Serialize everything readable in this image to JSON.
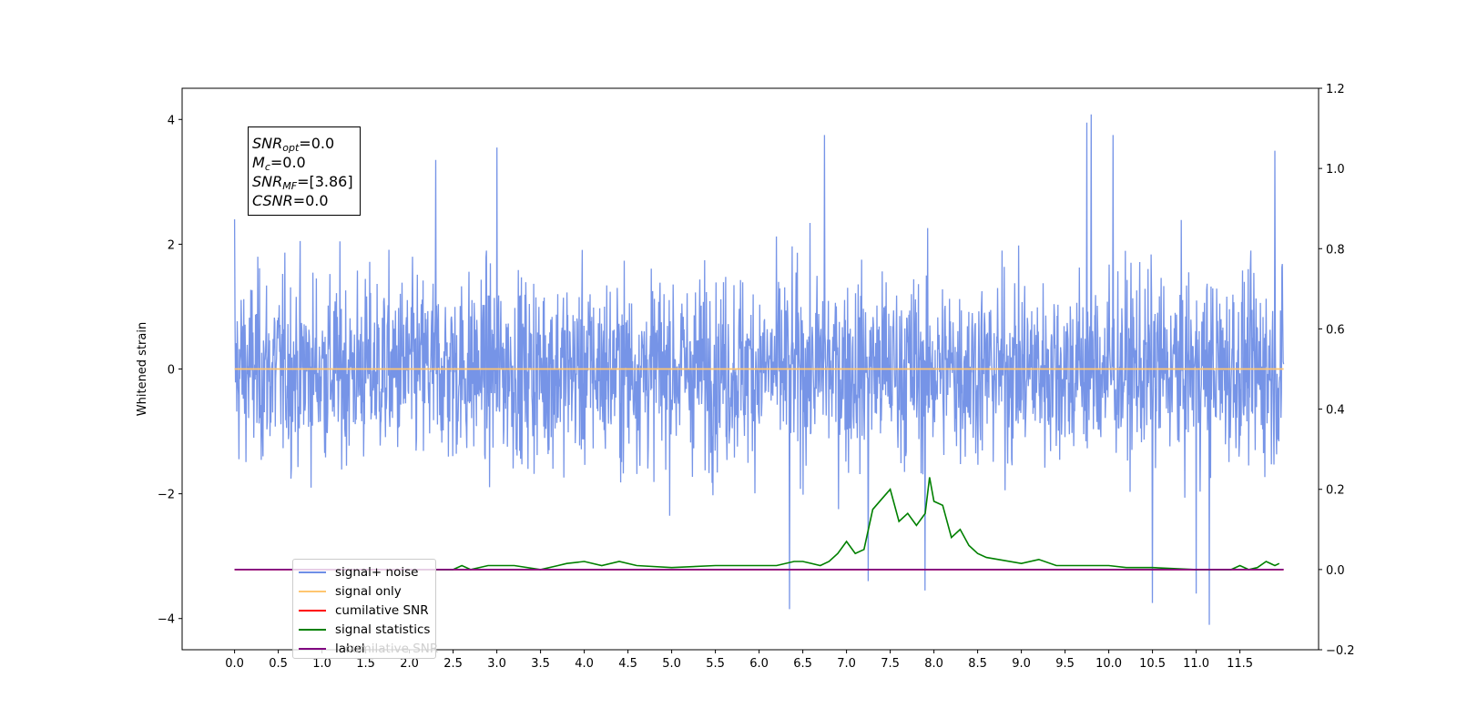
{
  "chart_data": {
    "type": "line",
    "title": "",
    "xlabel": "",
    "ylabel": "Whitened strain",
    "xlim": [
      -0.6,
      12.4
    ],
    "ylim": [
      -4.5,
      4.5
    ],
    "y2lim": [
      -0.2,
      1.2
    ],
    "x_ticks": [
      "0.0",
      "0.5",
      "1.0",
      "1.5",
      "2.0",
      "2.5",
      "3.0",
      "3.5",
      "4.0",
      "4.5",
      "5.0",
      "5.5",
      "6.0",
      "6.5",
      "7.0",
      "7.5",
      "8.0",
      "8.5",
      "9.0",
      "9.5",
      "10.0",
      "10.5",
      "11.0",
      "11.5"
    ],
    "y_ticks": [
      "4",
      "2",
      "0",
      "−2",
      "−4"
    ],
    "y2_ticks": [
      "1.2",
      "1.0",
      "0.8",
      "0.6",
      "0.4",
      "0.2",
      "0.0",
      "−0.2"
    ],
    "grid": false,
    "legend_position": "lower-left",
    "info_box": {
      "snr_opt": "=0.0",
      "mc": "=0.0",
      "snr_mf": "=[3.86]",
      "csnr": "=0.0"
    },
    "series": [
      {
        "name": "signal+ noise",
        "axis": "left",
        "color": "#6f8ee6",
        "description_of_values": "white noise approx. N(0,1), range about -4.1 to 4.1",
        "x_range": [
          0.0,
          12.0
        ],
        "peaks": [
          [
            0.0,
            2.4
          ],
          [
            2.3,
            3.35
          ],
          [
            3.0,
            3.55
          ],
          [
            6.75,
            3.75
          ],
          [
            9.75,
            3.95
          ],
          [
            9.8,
            4.08
          ],
          [
            10.05,
            3.75
          ],
          [
            11.9,
            3.5
          ]
        ],
        "troughs": [
          [
            6.35,
            -3.85
          ],
          [
            7.25,
            -3.4
          ],
          [
            7.9,
            -3.55
          ],
          [
            10.5,
            -3.75
          ],
          [
            11.0,
            -3.6
          ],
          [
            11.15,
            -4.1
          ]
        ]
      },
      {
        "name": "signal only",
        "axis": "left",
        "color": "#ffc670",
        "x": [
          0.0,
          12.0
        ],
        "y": [
          0.0,
          0.0
        ]
      },
      {
        "name": "cumilative SNR",
        "axis": "right",
        "color": "#ff0000",
        "x": [
          0.0,
          12.0
        ],
        "y": [
          0.0,
          0.0
        ]
      },
      {
        "name": "signal statistics",
        "axis": "right",
        "color": "#008000",
        "x": [
          2.0,
          2.5,
          2.6,
          2.7,
          2.9,
          3.0,
          3.2,
          3.5,
          3.7,
          3.8,
          4.0,
          4.2,
          4.4,
          4.6,
          5.0,
          5.5,
          6.0,
          6.2,
          6.4,
          6.5,
          6.7,
          6.8,
          6.9,
          7.0,
          7.1,
          7.2,
          7.3,
          7.4,
          7.5,
          7.6,
          7.7,
          7.8,
          7.9,
          7.95,
          8.0,
          8.1,
          8.2,
          8.3,
          8.4,
          8.5,
          8.6,
          9.0,
          9.2,
          9.4,
          9.6,
          9.8,
          10.0,
          10.2,
          10.5,
          11.0,
          11.4,
          11.5,
          11.6,
          11.7,
          11.8,
          11.9,
          11.95
        ],
        "y": [
          0.0,
          0.0,
          0.01,
          0.0,
          0.01,
          0.01,
          0.01,
          0.0,
          0.01,
          0.015,
          0.02,
          0.01,
          0.02,
          0.01,
          0.005,
          0.01,
          0.01,
          0.01,
          0.02,
          0.02,
          0.01,
          0.02,
          0.04,
          0.07,
          0.04,
          0.05,
          0.15,
          0.175,
          0.2,
          0.12,
          0.14,
          0.11,
          0.14,
          0.23,
          0.17,
          0.16,
          0.08,
          0.1,
          0.06,
          0.04,
          0.03,
          0.015,
          0.025,
          0.01,
          0.01,
          0.01,
          0.01,
          0.005,
          0.005,
          0.0,
          0.0,
          0.01,
          0.0,
          0.005,
          0.02,
          0.01,
          0.015
        ]
      },
      {
        "name": "label",
        "axis": "right",
        "color": "#800080",
        "x": [
          0.0,
          12.0
        ],
        "y": [
          0.0,
          0.0
        ]
      }
    ],
    "hidden_legend_text": "cumilative SNR"
  }
}
